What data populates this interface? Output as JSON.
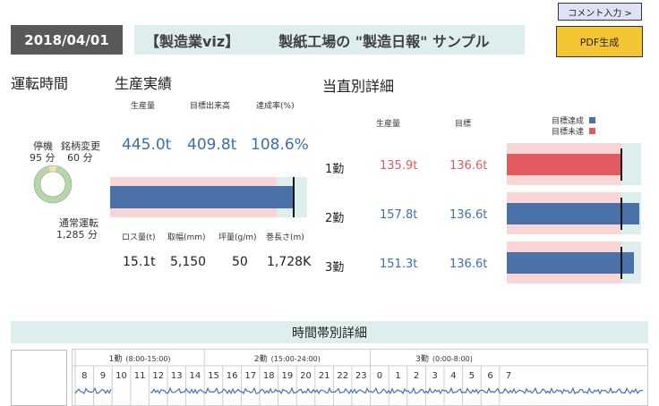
{
  "header": {
    "date": "2018/04/01",
    "brand": "【製造業viz】",
    "title": "製紙工場の \"製造日報\" サンプル",
    "comment_button": "コメント入力 >",
    "pdf_button": "PDF生成"
  },
  "operation": {
    "section_title": "運転時間",
    "stop_label": "停機",
    "stop_value": "95 分",
    "change_label": "銘柄変更",
    "change_value": "60 分",
    "normal_label": "通常運転",
    "normal_value": "1,285 分",
    "minutes": {
      "stop": 95,
      "change": 60,
      "normal": 1285
    },
    "colors": {
      "stop": "#f2e3a6",
      "change": "#f2e3a6",
      "normal": "#b5d7a8"
    }
  },
  "production": {
    "section_title": "生産実績",
    "volume_label": "生産量",
    "target_label": "目標出来高",
    "rate_label": "達成率(%)",
    "volume": "445.0t",
    "target": "409.8t",
    "rate": "108.6%",
    "bar": {
      "actual": 445.0,
      "target": 409.8
    },
    "loss_label": "ロス量(t)",
    "width_label": "取幅(mm)",
    "basis_label": "坪量(g/m)",
    "length_label": "巻長さ(m)",
    "loss": "15.1t",
    "width": "5,150",
    "basis": "50",
    "length": "1,728K"
  },
  "shifts": {
    "section_title": "当直別詳細",
    "volume_label": "生産量",
    "target_label": "目標",
    "legend_achieved": "目標達成",
    "legend_missed": "目標未達",
    "colors": {
      "achieved": "#4a72a8",
      "missed": "#e05a60"
    },
    "rows": [
      {
        "name": "1勤",
        "volume": "135.9t",
        "target": "136.6t",
        "actual": 135.9,
        "goal": 136.6,
        "status": "missed"
      },
      {
        "name": "2勤",
        "volume": "157.8t",
        "target": "136.6t",
        "actual": 157.8,
        "goal": 136.6,
        "status": "achieved"
      },
      {
        "name": "3勤",
        "volume": "151.3t",
        "target": "136.6t",
        "actual": 151.3,
        "goal": 136.6,
        "status": "achieved"
      }
    ]
  },
  "timeline": {
    "title": "時間帯別詳細",
    "shift_headers": [
      {
        "name": "1勤",
        "range": "(8:00-15:00)"
      },
      {
        "name": "2勤",
        "range": "(15:00-24:00)"
      },
      {
        "name": "3勤",
        "range": "(0:00-8:00)"
      }
    ],
    "hours": [
      "8",
      "9",
      "10",
      "11",
      "12",
      "13",
      "14",
      "15",
      "16",
      "17",
      "18",
      "19",
      "20",
      "21",
      "22",
      "23",
      "0",
      "1",
      "2",
      "3",
      "4",
      "5",
      "6",
      "7"
    ]
  }
}
